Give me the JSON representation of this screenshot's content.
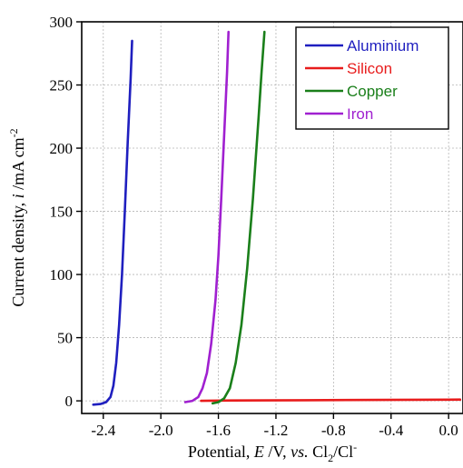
{
  "chart_data": {
    "type": "line",
    "title": "",
    "xlabel": {
      "prefix": "Potential, ",
      "var": "E",
      "mid": " /V, ",
      "vs": "vs.",
      "ref_a": " Cl",
      "ref_sub": "2",
      "ref_b": "/Cl",
      "ref_sup": "-"
    },
    "ylabel": {
      "prefix": "Current density, ",
      "var": "i",
      "mid": " /mA cm",
      "sup": "-2"
    },
    "xlim": [
      -2.55,
      0.1
    ],
    "ylim": [
      -10,
      300
    ],
    "xticks": [
      -2.4,
      -2.0,
      -1.6,
      -1.2,
      -0.8,
      -0.4,
      0.0
    ],
    "xtick_labels": [
      "-2.4",
      "-2.0",
      "-1.6",
      "-1.2",
      "-0.8",
      "-0.4",
      "0.0"
    ],
    "yticks": [
      0,
      50,
      100,
      150,
      200,
      250,
      300
    ],
    "ytick_labels": [
      "0",
      "50",
      "100",
      "150",
      "200",
      "250",
      "300"
    ],
    "grid": true,
    "legend_position": "top-right",
    "series": [
      {
        "name": "Aluminium",
        "color": "#1f1fbf",
        "x": [
          -2.47,
          -2.42,
          -2.38,
          -2.35,
          -2.33,
          -2.31,
          -2.29,
          -2.27,
          -2.25,
          -2.23,
          -2.21,
          -2.2
        ],
        "y": [
          -3,
          -2.5,
          -1,
          3,
          12,
          30,
          60,
          100,
          150,
          205,
          255,
          285
        ]
      },
      {
        "name": "Silicon",
        "color": "#e81c1c",
        "x": [
          -1.72,
          -1.5,
          -1.0,
          -0.5,
          0.0,
          0.08
        ],
        "y": [
          0,
          0.3,
          0.5,
          0.7,
          0.9,
          1.0
        ]
      },
      {
        "name": "Copper",
        "color": "#1a7f1a",
        "x": [
          -1.64,
          -1.6,
          -1.56,
          -1.52,
          -1.48,
          -1.44,
          -1.4,
          -1.36,
          -1.32,
          -1.3,
          -1.28
        ],
        "y": [
          -2,
          -1,
          2,
          10,
          30,
          60,
          105,
          160,
          225,
          260,
          292
        ]
      },
      {
        "name": "Iron",
        "color": "#a020d0",
        "x": [
          -1.83,
          -1.78,
          -1.74,
          -1.71,
          -1.68,
          -1.65,
          -1.62,
          -1.6,
          -1.58,
          -1.56,
          -1.54,
          -1.53
        ],
        "y": [
          -1,
          0,
          3,
          10,
          22,
          45,
          80,
          115,
          160,
          210,
          260,
          292
        ]
      }
    ]
  }
}
